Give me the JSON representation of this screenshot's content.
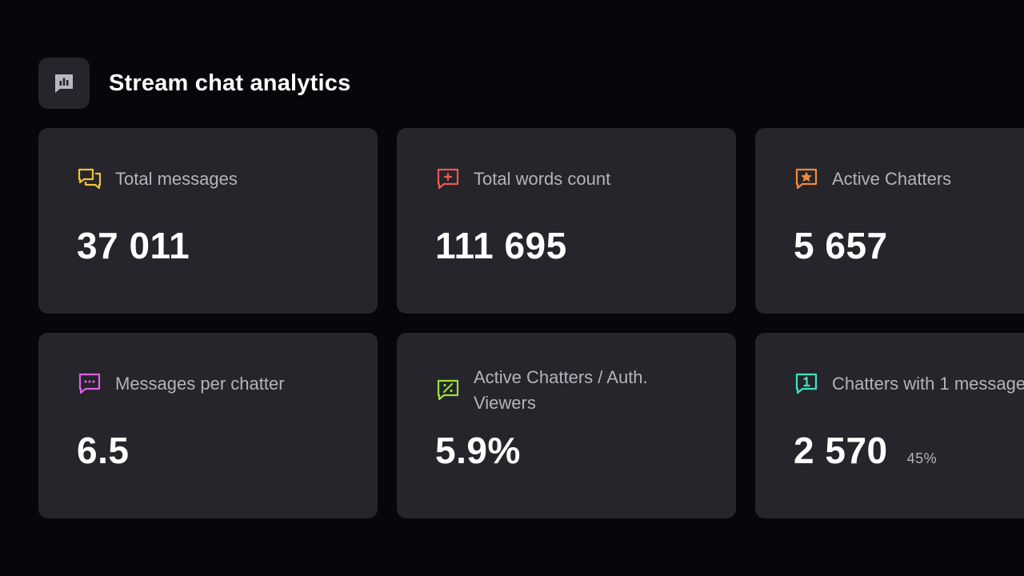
{
  "header": {
    "title": "Stream chat analytics",
    "icon": "bar-chart-icon"
  },
  "cards": [
    {
      "label": "Total messages",
      "value": "37 011",
      "icon": "messages-icon",
      "color": "#f2c230"
    },
    {
      "label": "Total words count",
      "value": "111 695",
      "icon": "chat-plus-icon",
      "color": "#ee5a4f"
    },
    {
      "label": "Active Chatters",
      "value": "5 657",
      "icon": "chat-star-icon",
      "color": "#f38a3a"
    },
    {
      "label": "Messages per chatter",
      "value": "6.5",
      "icon": "chat-dots-icon",
      "color": "#e35fe6"
    },
    {
      "label": "Active Chatters / Auth. Viewers",
      "value": "5.9%",
      "icon": "chat-percent-icon",
      "color": "#9be23a"
    },
    {
      "label": "Chatters with 1 message",
      "value": "2 570",
      "sub": "45%",
      "icon": "chat-one-icon",
      "color": "#3fe3c4"
    }
  ]
}
